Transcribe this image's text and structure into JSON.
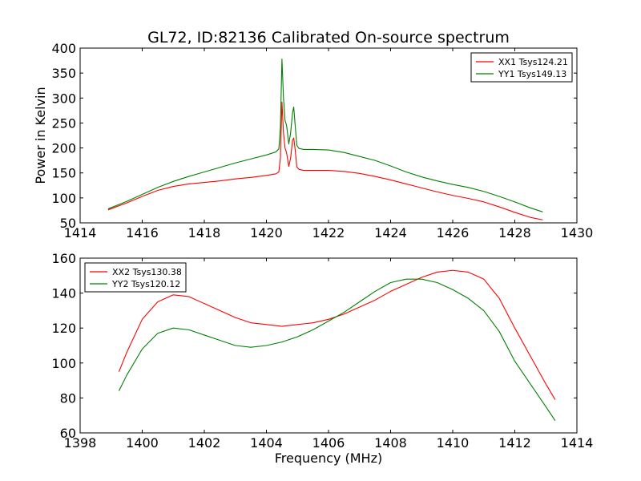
{
  "title": "GL72, ID:82136 Calibrated On-source spectrum",
  "chart_data": [
    {
      "type": "line",
      "ylabel": "Power in Kelvin",
      "xlabel": "",
      "xlim": [
        1414,
        1430
      ],
      "ylim": [
        50,
        400
      ],
      "xticks": [
        1414,
        1416,
        1418,
        1420,
        1422,
        1424,
        1426,
        1428,
        1430
      ],
      "yticks": [
        50,
        100,
        150,
        200,
        250,
        300,
        350,
        400
      ],
      "legend_position": "top-right",
      "series": [
        {
          "name": "XX1 Tsys124.21",
          "color": "#ff0000",
          "x": [
            1414.9,
            1415.5,
            1416.0,
            1416.5,
            1417.0,
            1417.5,
            1418.0,
            1418.5,
            1419.0,
            1419.5,
            1420.0,
            1420.3,
            1420.4,
            1420.45,
            1420.5,
            1420.55,
            1420.6,
            1420.65,
            1420.72,
            1420.78,
            1420.84,
            1420.88,
            1420.92,
            1420.98,
            1421.05,
            1421.2,
            1421.5,
            1422.0,
            1422.5,
            1423.0,
            1423.5,
            1424.0,
            1424.5,
            1425.0,
            1425.5,
            1426.0,
            1426.5,
            1427.0,
            1427.5,
            1428.0,
            1428.5,
            1428.9
          ],
          "values": [
            76,
            90,
            103,
            115,
            123,
            128,
            131,
            134,
            138,
            141,
            145,
            148,
            152,
            180,
            292,
            230,
            200,
            190,
            163,
            180,
            215,
            220,
            200,
            162,
            157,
            155,
            155,
            155,
            153,
            149,
            143,
            136,
            128,
            120,
            112,
            105,
            99,
            92,
            82,
            71,
            61,
            56
          ]
        },
        {
          "name": "YY1 Tsys149.13",
          "color": "#008000",
          "x": [
            1414.9,
            1415.5,
            1416.0,
            1416.5,
            1417.0,
            1417.5,
            1418.0,
            1418.5,
            1419.0,
            1419.5,
            1420.0,
            1420.3,
            1420.4,
            1420.45,
            1420.5,
            1420.55,
            1420.6,
            1420.65,
            1420.72,
            1420.78,
            1420.84,
            1420.88,
            1420.92,
            1420.98,
            1421.05,
            1421.2,
            1421.5,
            1422.0,
            1422.5,
            1423.0,
            1423.5,
            1424.0,
            1424.5,
            1425.0,
            1425.5,
            1426.0,
            1426.5,
            1427.0,
            1427.5,
            1428.0,
            1428.5,
            1428.9
          ],
          "values": [
            78,
            93,
            107,
            121,
            133,
            143,
            152,
            161,
            170,
            178,
            186,
            192,
            198,
            240,
            378,
            300,
            255,
            245,
            208,
            230,
            270,
            282,
            250,
            205,
            199,
            197,
            197,
            196,
            191,
            183,
            175,
            164,
            152,
            142,
            134,
            127,
            121,
            113,
            103,
            92,
            80,
            72
          ]
        }
      ]
    },
    {
      "type": "line",
      "ylabel": "",
      "xlabel": "Frequency (MHz)",
      "xlim": [
        1398,
        1414
      ],
      "ylim": [
        60,
        160
      ],
      "xticks": [
        1398,
        1400,
        1402,
        1404,
        1406,
        1408,
        1410,
        1412,
        1414
      ],
      "yticks": [
        60,
        80,
        100,
        120,
        140,
        160
      ],
      "legend_position": "top-left",
      "series": [
        {
          "name": "XX2 Tsys130.38",
          "color": "#ff0000",
          "x": [
            1399.25,
            1399.5,
            1400.0,
            1400.5,
            1401.0,
            1401.5,
            1402.0,
            1402.5,
            1403.0,
            1403.5,
            1404.0,
            1404.5,
            1405.0,
            1405.5,
            1406.0,
            1406.5,
            1407.0,
            1407.5,
            1408.0,
            1408.5,
            1409.0,
            1409.5,
            1410.0,
            1410.5,
            1411.0,
            1411.5,
            1412.0,
            1412.5,
            1413.0,
            1413.3
          ],
          "values": [
            95,
            106,
            125,
            135,
            139,
            138,
            134,
            130,
            126,
            123,
            122,
            121,
            122,
            123,
            125,
            128,
            132,
            136,
            141,
            145,
            149,
            152,
            153,
            152,
            148,
            137,
            120,
            104,
            88,
            79
          ]
        },
        {
          "name": "YY2 Tsys120.12",
          "color": "#008000",
          "x": [
            1399.25,
            1399.5,
            1400.0,
            1400.5,
            1401.0,
            1401.5,
            1402.0,
            1402.5,
            1403.0,
            1403.5,
            1404.0,
            1404.5,
            1405.0,
            1405.5,
            1406.0,
            1406.5,
            1407.0,
            1407.5,
            1408.0,
            1408.5,
            1409.0,
            1409.5,
            1410.0,
            1410.5,
            1411.0,
            1411.5,
            1412.0,
            1412.5,
            1413.0,
            1413.3
          ],
          "values": [
            84,
            93,
            108,
            117,
            120,
            119,
            116,
            113,
            110,
            109,
            110,
            112,
            115,
            119,
            124,
            129,
            135,
            141,
            146,
            148,
            148,
            146,
            142,
            137,
            130,
            118,
            101,
            88,
            75,
            67
          ]
        }
      ]
    }
  ]
}
